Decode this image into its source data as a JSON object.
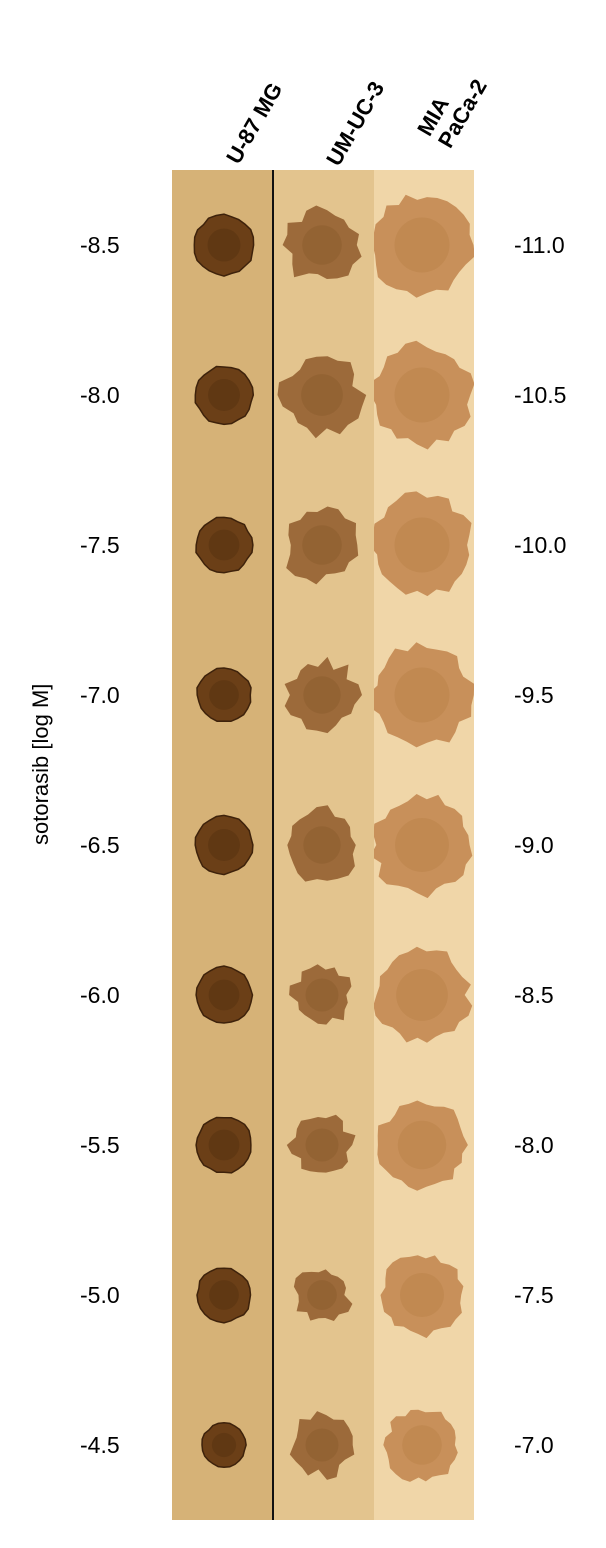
{
  "columns": [
    "U-87 MG",
    "UM-UC-3",
    "MIA PaCa-2"
  ],
  "column_header_lines": [
    [
      "U-87 MG"
    ],
    [
      "UM-UC-3"
    ],
    [
      "MIA",
      "PaCa-2"
    ]
  ],
  "y_axis_title": "sotorasib [log M]",
  "left_labels": [
    "-8.5",
    "-8.0",
    "-7.5",
    "-7.0",
    "-6.5",
    "-6.0",
    "-5.5",
    "-5.0",
    "-4.5"
  ],
  "right_labels": [
    "-11.0",
    "-10.5",
    "-10.0",
    "-9.5",
    "-9.0",
    "-8.5",
    "-8.0",
    "-7.5",
    "-7.0"
  ],
  "colors": {
    "background_u87": "#d6b277",
    "background_umuc": "#e3c48e",
    "background_mia": "#f0d6a8",
    "spheroid_dark": "#6b3f17",
    "spheroid_mid": "#9c6a3a",
    "spheroid_light": "#c8905a",
    "divider": "#111111"
  },
  "icons": {
    "u87_spheroid": "dense-round-spheroid",
    "umuc_spheroid": "irregular-clustered-spheroid",
    "mia_spheroid": "large-loose-spheroid"
  }
}
